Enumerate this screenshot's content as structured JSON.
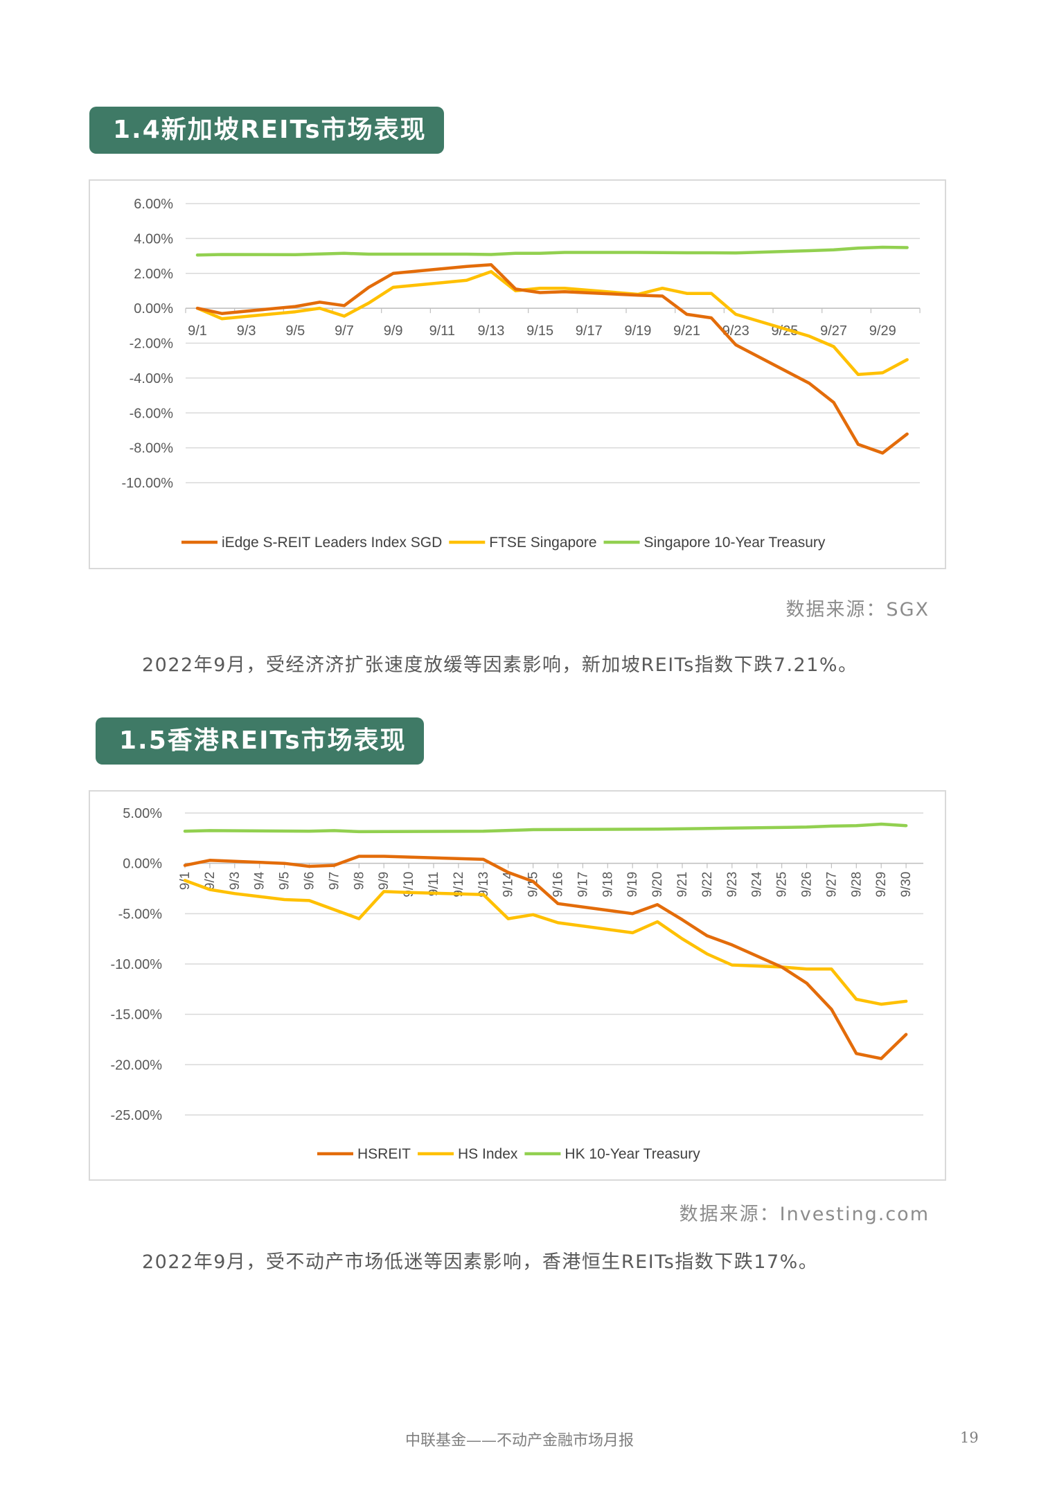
{
  "sections": [
    {
      "title": "1.4新加坡REITs市场表现",
      "source": "数据来源：SGX",
      "paragraph": "2022年9月，受经济济扩张速度放缓等因素影响，新加坡REITs指数下跌7.21%。"
    },
    {
      "title": "1.5香港REITs市场表现",
      "source": "数据来源：Investing.com",
      "paragraph": "2022年9月，受不动产市场低迷等因素影响，香港恒生REITs指数下跌17%。"
    }
  ],
  "footer": {
    "text": "中联基金——不动产金融市场月报",
    "page_number": "19"
  },
  "chart_data": [
    {
      "type": "line",
      "title": "",
      "ylim": [
        -10,
        6
      ],
      "y_ticks": [
        "6.00%",
        "4.00%",
        "2.00%",
        "0.00%",
        "-2.00%",
        "-4.00%",
        "-6.00%",
        "-8.00%",
        "-10.00%"
      ],
      "x_tick_labels": [
        "9/1",
        "9/3",
        "9/5",
        "9/7",
        "9/9",
        "9/11",
        "9/13",
        "9/15",
        "9/17",
        "9/19",
        "9/21",
        "9/23",
        "9/25",
        "9/27",
        "9/29"
      ],
      "grid": true,
      "legend_position": "bottom",
      "series": [
        {
          "name": "iEdge S-REIT Leaders Index SGD",
          "color": "#e36c0a",
          "points": [
            [
              "9/1",
              0.0
            ],
            [
              "9/2",
              -0.3
            ],
            [
              "9/5",
              0.1
            ],
            [
              "9/6",
              0.35
            ],
            [
              "9/7",
              0.15
            ],
            [
              "9/8",
              1.2
            ],
            [
              "9/9",
              2.0
            ],
            [
              "9/12",
              2.4
            ],
            [
              "9/13",
              2.5
            ],
            [
              "9/14",
              1.1
            ],
            [
              "9/15",
              0.9
            ],
            [
              "9/16",
              0.95
            ],
            [
              "9/19",
              0.75
            ],
            [
              "9/20",
              0.7
            ],
            [
              "9/21",
              -0.35
            ],
            [
              "9/22",
              -0.55
            ],
            [
              "9/23",
              -2.1
            ],
            [
              "9/26",
              -4.3
            ],
            [
              "9/27",
              -5.4
            ],
            [
              "9/28",
              -7.8
            ],
            [
              "9/29",
              -8.3
            ],
            [
              "9/30",
              -7.21
            ]
          ]
        },
        {
          "name": "FTSE Singapore",
          "color": "#ffc000",
          "points": [
            [
              "9/1",
              0.0
            ],
            [
              "9/2",
              -0.6
            ],
            [
              "9/5",
              -0.2
            ],
            [
              "9/6",
              0.0
            ],
            [
              "9/7",
              -0.45
            ],
            [
              "9/8",
              0.3
            ],
            [
              "9/9",
              1.2
            ],
            [
              "9/12",
              1.6
            ],
            [
              "9/13",
              2.1
            ],
            [
              "9/14",
              1.0
            ],
            [
              "9/15",
              1.15
            ],
            [
              "9/16",
              1.15
            ],
            [
              "9/19",
              0.8
            ],
            [
              "9/20",
              1.15
            ],
            [
              "9/21",
              0.85
            ],
            [
              "9/22",
              0.85
            ],
            [
              "9/23",
              -0.35
            ],
            [
              "9/26",
              -1.6
            ],
            [
              "9/27",
              -2.2
            ],
            [
              "9/28",
              -3.8
            ],
            [
              "9/29",
              -3.7
            ],
            [
              "9/30",
              -2.95
            ]
          ]
        },
        {
          "name": "Singapore 10-Year Treasury",
          "color": "#92d050",
          "points": [
            [
              "9/1",
              3.05
            ],
            [
              "9/2",
              3.08
            ],
            [
              "9/5",
              3.07
            ],
            [
              "9/7",
              3.15
            ],
            [
              "9/8",
              3.1
            ],
            [
              "9/9",
              3.1
            ],
            [
              "9/12",
              3.1
            ],
            [
              "9/13",
              3.08
            ],
            [
              "9/14",
              3.15
            ],
            [
              "9/15",
              3.15
            ],
            [
              "9/16",
              3.2
            ],
            [
              "9/19",
              3.2
            ],
            [
              "9/21",
              3.18
            ],
            [
              "9/22",
              3.18
            ],
            [
              "9/23",
              3.17
            ],
            [
              "9/26",
              3.3
            ],
            [
              "9/27",
              3.35
            ],
            [
              "9/28",
              3.45
            ],
            [
              "9/29",
              3.5
            ],
            [
              "9/30",
              3.48
            ]
          ]
        }
      ]
    },
    {
      "type": "line",
      "title": "",
      "ylim": [
        -25,
        5
      ],
      "y_ticks": [
        "5.00%",
        "0.00%",
        "-5.00%",
        "-10.00%",
        "-15.00%",
        "-20.00%",
        "-25.00%"
      ],
      "x_tick_labels": [
        "9/1",
        "9/2",
        "9/3",
        "9/4",
        "9/5",
        "9/6",
        "9/7",
        "9/8",
        "9/9",
        "9/10",
        "9/11",
        "9/12",
        "9/13",
        "9/14",
        "9/15",
        "9/16",
        "9/17",
        "9/18",
        "9/19",
        "9/20",
        "9/21",
        "9/22",
        "9/23",
        "9/24",
        "9/25",
        "9/26",
        "9/27",
        "9/28",
        "9/29",
        "9/30"
      ],
      "grid": true,
      "legend_position": "bottom",
      "series": [
        {
          "name": "HSREIT",
          "color": "#e36c0a",
          "points": [
            [
              "9/1",
              -0.2
            ],
            [
              "9/2",
              0.3
            ],
            [
              "9/5",
              0.0
            ],
            [
              "9/6",
              -0.3
            ],
            [
              "9/7",
              -0.2
            ],
            [
              "9/8",
              0.7
            ],
            [
              "9/9",
              0.7
            ],
            [
              "9/13",
              0.4
            ],
            [
              "9/14",
              -0.9
            ],
            [
              "9/15",
              -1.8
            ],
            [
              "9/16",
              -4.0
            ],
            [
              "9/19",
              -5.0
            ],
            [
              "9/20",
              -4.1
            ],
            [
              "9/21",
              -5.6
            ],
            [
              "9/22",
              -7.2
            ],
            [
              "9/23",
              -8.1
            ],
            [
              "9/25",
              -10.3
            ],
            [
              "9/26",
              -11.9
            ],
            [
              "9/27",
              -14.5
            ],
            [
              "9/28",
              -18.9
            ],
            [
              "9/29",
              -19.4
            ],
            [
              "9/30",
              -17.0
            ]
          ]
        },
        {
          "name": "HS Index",
          "color": "#ffc000",
          "points": [
            [
              "9/1",
              -1.7
            ],
            [
              "9/2",
              -2.6
            ],
            [
              "9/3",
              -3.0
            ],
            [
              "9/4",
              -3.3
            ],
            [
              "9/5",
              -3.6
            ],
            [
              "9/6",
              -3.7
            ],
            [
              "9/7",
              -4.6
            ],
            [
              "9/8",
              -5.5
            ],
            [
              "9/9",
              -2.8
            ],
            [
              "9/10",
              -2.9
            ],
            [
              "9/13",
              -3.1
            ],
            [
              "9/14",
              -5.5
            ],
            [
              "9/15",
              -5.1
            ],
            [
              "9/16",
              -5.9
            ],
            [
              "9/19",
              -6.9
            ],
            [
              "9/20",
              -5.8
            ],
            [
              "9/21",
              -7.5
            ],
            [
              "9/22",
              -9.0
            ],
            [
              "9/23",
              -10.1
            ],
            [
              "9/25",
              -10.3
            ],
            [
              "9/26",
              -10.5
            ],
            [
              "9/27",
              -10.5
            ],
            [
              "9/28",
              -13.5
            ],
            [
              "9/29",
              -14.0
            ],
            [
              "9/30",
              -13.7
            ]
          ]
        },
        {
          "name": "HK 10-Year Treasury",
          "color": "#92d050",
          "points": [
            [
              "9/1",
              3.2
            ],
            [
              "9/2",
              3.25
            ],
            [
              "9/6",
              3.2
            ],
            [
              "9/7",
              3.25
            ],
            [
              "9/8",
              3.15
            ],
            [
              "9/13",
              3.2
            ],
            [
              "9/15",
              3.35
            ],
            [
              "9/20",
              3.4
            ],
            [
              "9/23",
              3.5
            ],
            [
              "9/26",
              3.6
            ],
            [
              "9/27",
              3.7
            ],
            [
              "9/28",
              3.75
            ],
            [
              "9/29",
              3.9
            ],
            [
              "9/30",
              3.75
            ]
          ]
        }
      ]
    }
  ]
}
